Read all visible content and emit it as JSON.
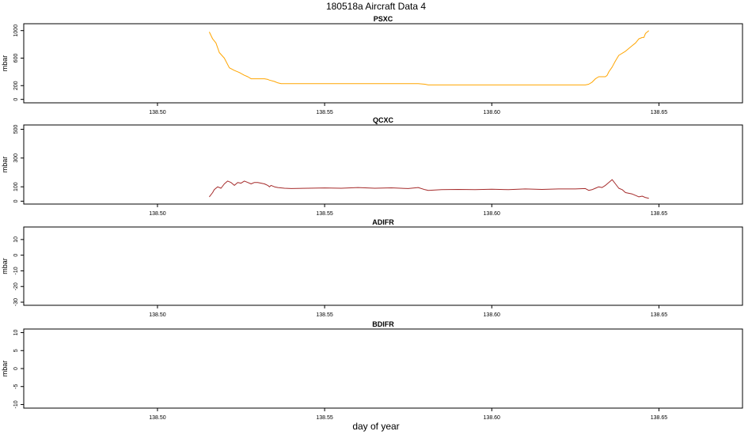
{
  "figure": {
    "title": "180518a    Aircraft Data 4",
    "xlabel": "day of year"
  },
  "chart_data": [
    {
      "type": "line",
      "title": "PSXC",
      "ylabel": "mbar",
      "xlim": [
        138.46,
        138.675
      ],
      "ylim": [
        -50,
        1100
      ],
      "xticks": [
        138.5,
        138.55,
        138.6,
        138.65
      ],
      "xtick_labels": [
        "138.50",
        "138.55",
        "138.60",
        "138.65"
      ],
      "yticks": [
        0,
        200,
        600,
        1000
      ],
      "ytick_labels": [
        "0",
        "200",
        "600",
        "1000"
      ],
      "series": [
        {
          "color": "#FFA500",
          "x": [
            138.5155,
            138.5165,
            138.5175,
            138.5185,
            138.52,
            138.5215,
            138.523,
            138.5245,
            138.526,
            138.527,
            138.528,
            138.529,
            138.5305,
            138.532,
            138.533,
            138.5335,
            138.535,
            138.536,
            138.537,
            138.54,
            138.55,
            138.56,
            138.57,
            138.578,
            138.58,
            138.581,
            138.59,
            138.6,
            138.61,
            138.62,
            138.628,
            138.629,
            138.63,
            138.631,
            138.632,
            138.633,
            138.634,
            138.6345,
            138.635,
            138.636,
            138.637,
            138.638,
            138.64,
            138.642,
            138.643,
            138.644,
            138.645,
            138.6455,
            138.646,
            138.647
          ],
          "y": [
            980,
            880,
            820,
            680,
            600,
            460,
            420,
            390,
            350,
            330,
            300,
            300,
            300,
            300,
            290,
            280,
            260,
            240,
            230,
            230,
            230,
            230,
            230,
            230,
            220,
            210,
            210,
            210,
            210,
            210,
            210,
            220,
            250,
            300,
            330,
            330,
            330,
            350,
            400,
            470,
            560,
            640,
            700,
            780,
            820,
            880,
            900,
            900,
            960,
            1000
          ]
        }
      ]
    },
    {
      "type": "line",
      "title": "QCXC",
      "ylabel": "mbar",
      "xlim": [
        138.46,
        138.675
      ],
      "ylim": [
        -20,
        530
      ],
      "xticks": [
        138.5,
        138.55,
        138.6,
        138.65
      ],
      "xtick_labels": [
        "138.50",
        "138.55",
        "138.60",
        "138.65"
      ],
      "yticks": [
        0,
        100,
        300,
        500
      ],
      "ytick_labels": [
        "0",
        "100",
        "300",
        "500"
      ],
      "series": [
        {
          "color": "#A52A2A",
          "x": [
            138.5155,
            138.5165,
            138.517,
            138.518,
            138.519,
            138.52,
            138.521,
            138.522,
            138.523,
            138.524,
            138.525,
            138.526,
            138.527,
            138.528,
            138.529,
            138.53,
            138.531,
            138.532,
            138.533,
            138.5335,
            138.534,
            138.535,
            138.536,
            138.538,
            138.54,
            138.545,
            138.55,
            138.555,
            138.56,
            138.565,
            138.57,
            138.575,
            138.578,
            138.58,
            138.581,
            138.585,
            138.59,
            138.595,
            138.6,
            138.605,
            138.61,
            138.615,
            138.62,
            138.625,
            138.628,
            138.629,
            138.63,
            138.631,
            138.632,
            138.633,
            138.634,
            138.635,
            138.636,
            138.637,
            138.638,
            138.639,
            138.64,
            138.641,
            138.642,
            138.643,
            138.644,
            138.645,
            138.646,
            138.647
          ],
          "y": [
            30,
            60,
            80,
            100,
            90,
            120,
            140,
            130,
            110,
            130,
            125,
            140,
            130,
            120,
            130,
            130,
            125,
            120,
            110,
            100,
            110,
            100,
            95,
            90,
            88,
            90,
            92,
            90,
            95,
            90,
            93,
            88,
            95,
            80,
            75,
            80,
            82,
            80,
            83,
            80,
            85,
            82,
            85,
            85,
            88,
            75,
            80,
            90,
            100,
            95,
            110,
            130,
            150,
            120,
            90,
            80,
            60,
            55,
            50,
            40,
            30,
            35,
            25,
            20
          ]
        }
      ]
    },
    {
      "type": "line",
      "title": "ADIFR",
      "ylabel": "mbar",
      "xlim": [
        138.46,
        138.675
      ],
      "ylim": [
        -32,
        18
      ],
      "xticks": [
        138.5,
        138.55,
        138.6,
        138.65
      ],
      "xtick_labels": [
        "138.50",
        "138.55",
        "138.60",
        "138.65"
      ],
      "yticks": [
        -30,
        -20,
        -10,
        0,
        10
      ],
      "ytick_labels": [
        "-30",
        "-20",
        "-10",
        "0",
        "10"
      ],
      "series": []
    },
    {
      "type": "line",
      "title": "BDIFR",
      "ylabel": "mbar",
      "xlim": [
        138.46,
        138.675
      ],
      "ylim": [
        -11,
        11
      ],
      "xticks": [
        138.5,
        138.55,
        138.6,
        138.65
      ],
      "xtick_labels": [
        "138.50",
        "138.55",
        "138.60",
        "138.65"
      ],
      "yticks": [
        -10,
        -5,
        0,
        5,
        10
      ],
      "ytick_labels": [
        "-10",
        "-5",
        "0",
        "5",
        "10"
      ],
      "series": []
    }
  ]
}
